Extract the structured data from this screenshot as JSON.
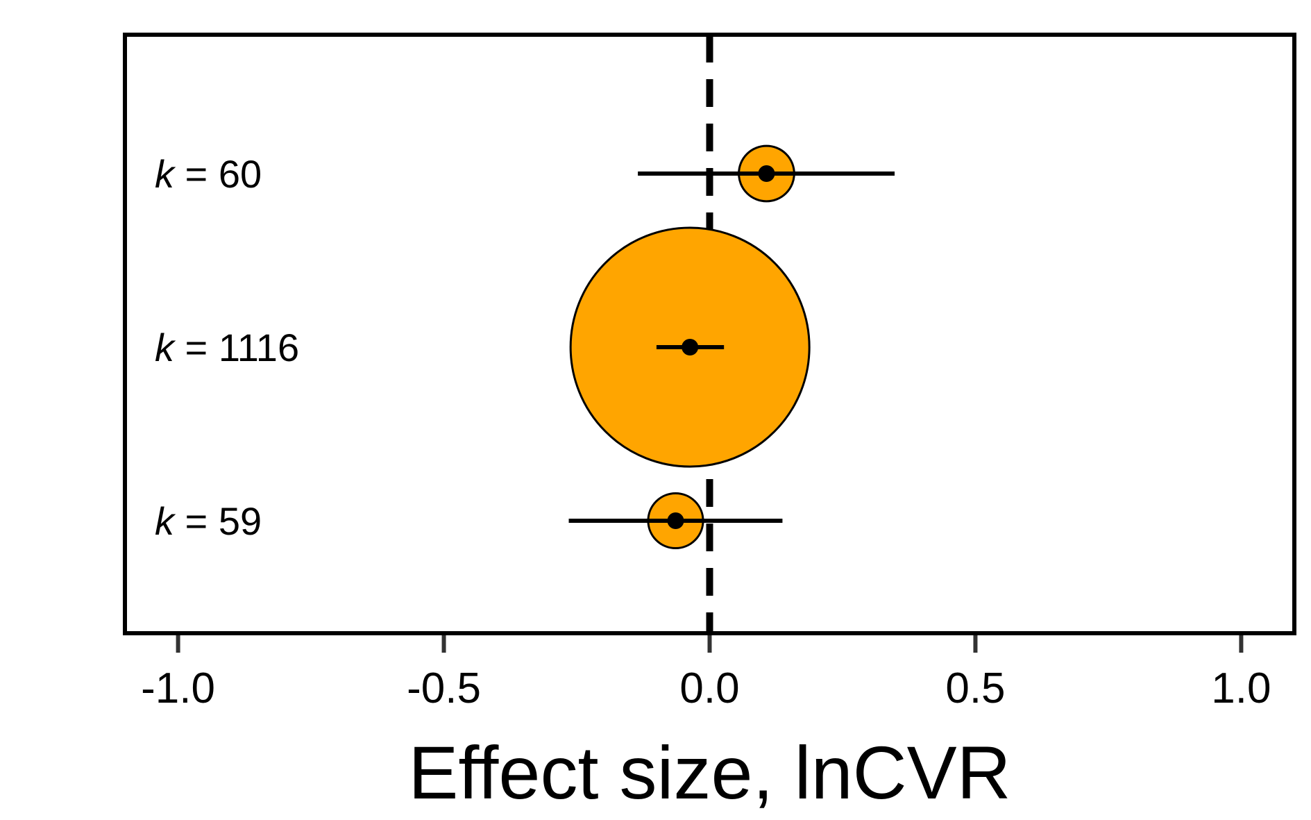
{
  "chart_data": {
    "type": "scatter",
    "subtype": "forest-plot",
    "title": "",
    "xlabel": "Effect size, lnCVR",
    "ylabel": "",
    "xlim": [
      -1.1,
      1.1
    ],
    "xticks": [
      -1.0,
      -0.5,
      0.0,
      0.5,
      1.0
    ],
    "xtick_labels": [
      "-1.0",
      "-0.5",
      "0.0",
      "0.5",
      "1.0"
    ],
    "reference_line": 0.0,
    "grid": false,
    "legend": "none",
    "colors": {
      "bubble_fill": "#FFA500",
      "line": "#000000"
    },
    "rows": [
      {
        "label_prefix": "k",
        "label_suffix": " = 60",
        "k": 60,
        "estimate": 0.107,
        "ci_low": -0.135,
        "ci_high": 0.348
      },
      {
        "label_prefix": "k",
        "label_suffix": " = 1116",
        "k": 1116,
        "estimate": -0.037,
        "ci_low": -0.1,
        "ci_high": 0.027
      },
      {
        "label_prefix": "k",
        "label_suffix": " = 59",
        "k": 59,
        "estimate": -0.064,
        "ci_low": -0.265,
        "ci_high": 0.137
      }
    ]
  }
}
